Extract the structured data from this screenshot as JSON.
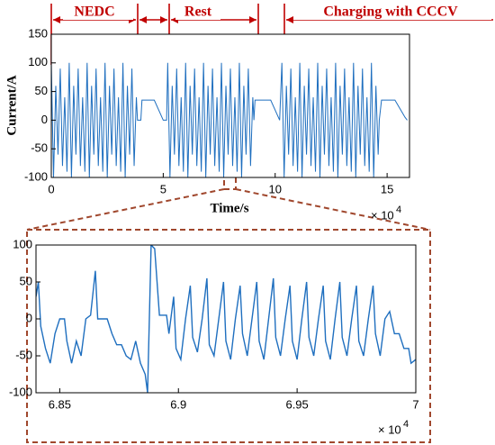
{
  "chart_data": [
    {
      "type": "line",
      "y_label": "Current/A",
      "x_label": "Time/s",
      "x_multiplier": "× 10",
      "x_exponent": "4",
      "annotations": [
        "NEDC",
        "Rest",
        "Charging with CCCV"
      ],
      "xlim": [
        0,
        16
      ],
      "xticks": [
        0,
        5,
        10,
        15
      ],
      "ylim": [
        -100,
        150
      ],
      "yticks": [
        -100,
        -50,
        0,
        50,
        100,
        150
      ],
      "color": "#1f6fbf",
      "x": [
        0,
        0.1,
        0.2,
        0.3,
        0.4,
        0.5,
        0.6,
        0.7,
        0.8,
        0.9,
        1.0,
        1.1,
        1.2,
        1.3,
        1.4,
        1.5,
        1.6,
        1.7,
        1.8,
        1.9,
        2.0,
        2.1,
        2.2,
        2.3,
        2.4,
        2.5,
        2.6,
        2.7,
        2.8,
        2.9,
        3.0,
        3.1,
        3.2,
        3.3,
        3.4,
        3.5,
        3.6,
        3.7,
        3.8,
        3.85,
        4.0,
        4.05,
        4.6,
        5.0,
        5.15,
        5.2,
        5.3,
        5.4,
        5.5,
        5.6,
        5.7,
        5.8,
        5.9,
        6.0,
        6.1,
        6.2,
        6.3,
        6.4,
        6.5,
        6.6,
        6.7,
        6.8,
        6.9,
        7.0,
        7.1,
        7.2,
        7.3,
        7.4,
        7.5,
        7.6,
        7.7,
        7.8,
        7.9,
        8.0,
        8.1,
        8.2,
        8.3,
        8.4,
        8.5,
        8.6,
        8.7,
        8.8,
        8.9,
        9.0,
        9.05,
        9.1,
        9.8,
        10.2,
        10.3,
        10.4,
        10.5,
        10.6,
        10.7,
        10.8,
        10.9,
        11.0,
        11.1,
        11.2,
        11.3,
        11.4,
        11.5,
        11.6,
        11.7,
        11.8,
        11.9,
        12.0,
        12.1,
        12.2,
        12.3,
        12.4,
        12.5,
        12.6,
        12.7,
        12.8,
        12.9,
        13.0,
        13.1,
        13.2,
        13.3,
        13.4,
        13.5,
        13.6,
        13.7,
        13.8,
        13.9,
        14.0,
        14.1,
        14.2,
        14.3,
        14.4,
        14.5,
        14.6,
        14.65,
        14.75,
        15.35,
        15.8,
        15.9
      ],
      "values": [
        100,
        -100,
        60,
        -60,
        90,
        -80,
        40,
        -90,
        100,
        -100,
        60,
        -60,
        90,
        -80,
        40,
        -90,
        100,
        -100,
        60,
        -60,
        90,
        -80,
        40,
        -90,
        100,
        -100,
        60,
        -60,
        90,
        -80,
        40,
        -90,
        100,
        -100,
        60,
        -60,
        90,
        -80,
        40,
        0,
        0,
        35,
        35,
        0,
        0,
        100,
        -100,
        60,
        -60,
        90,
        -80,
        40,
        -90,
        100,
        -100,
        60,
        -60,
        90,
        -80,
        40,
        -90,
        100,
        -100,
        60,
        -60,
        90,
        -80,
        40,
        -90,
        100,
        -100,
        60,
        -60,
        90,
        -80,
        40,
        -90,
        100,
        -100,
        60,
        -60,
        90,
        -80,
        40,
        0,
        35,
        35,
        0,
        100,
        -100,
        60,
        -60,
        90,
        -80,
        40,
        -90,
        100,
        -100,
        60,
        -60,
        90,
        -80,
        40,
        -90,
        100,
        -100,
        60,
        -60,
        90,
        -80,
        40,
        -90,
        100,
        -100,
        60,
        -60,
        90,
        -80,
        40,
        -90,
        100,
        -100,
        60,
        -60,
        90,
        -80,
        40,
        -90,
        100,
        -100,
        60,
        -60,
        0,
        35,
        35,
        5,
        0
      ]
    },
    {
      "type": "line",
      "x_multiplier": "× 10",
      "x_exponent": "4",
      "xlim": [
        6.84,
        7.0
      ],
      "xticks": [
        6.85,
        6.9,
        6.95,
        7
      ],
      "ylim": [
        -100,
        100
      ],
      "yticks": [
        -100,
        -50,
        0,
        50,
        100
      ],
      "color": "#1f6fbf",
      "x": [
        6.84,
        6.841,
        6.842,
        6.844,
        6.846,
        6.848,
        6.85,
        6.852,
        6.853,
        6.855,
        6.857,
        6.859,
        6.861,
        6.863,
        6.865,
        6.866,
        6.87,
        6.872,
        6.874,
        6.876,
        6.878,
        6.88,
        6.882,
        6.884,
        6.886,
        6.887,
        6.8885,
        6.89,
        6.891,
        6.892,
        6.895,
        6.896,
        6.898,
        6.899,
        6.901,
        6.903,
        6.905,
        6.906,
        6.908,
        6.91,
        6.912,
        6.913,
        6.915,
        6.917,
        6.919,
        6.92,
        6.922,
        6.924,
        6.926,
        6.927,
        6.929,
        6.931,
        6.933,
        6.934,
        6.936,
        6.938,
        6.94,
        6.941,
        6.943,
        6.945,
        6.947,
        6.948,
        6.95,
        6.952,
        6.954,
        6.955,
        6.957,
        6.959,
        6.961,
        6.962,
        6.964,
        6.966,
        6.968,
        6.969,
        6.971,
        6.973,
        6.975,
        6.976,
        6.978,
        6.98,
        6.982,
        6.983,
        6.985,
        6.987,
        6.989,
        6.991,
        6.993,
        6.995,
        6.997,
        6.998,
        7.0
      ],
      "values": [
        30,
        50,
        -10,
        -40,
        -60,
        -20,
        0,
        0,
        -30,
        -60,
        -30,
        -50,
        0,
        5,
        65,
        0,
        0,
        -20,
        -35,
        -35,
        -50,
        -55,
        -30,
        -60,
        -75,
        -100,
        100,
        95,
        50,
        5,
        5,
        -20,
        30,
        -40,
        -55,
        0,
        45,
        -25,
        -45,
        0,
        55,
        -35,
        -50,
        0,
        50,
        -30,
        -55,
        0,
        45,
        -20,
        -50,
        0,
        50,
        -30,
        -55,
        0,
        55,
        -25,
        -50,
        0,
        45,
        -30,
        -55,
        0,
        50,
        -25,
        -50,
        0,
        45,
        -30,
        -55,
        0,
        50,
        -25,
        -50,
        0,
        45,
        -30,
        -50,
        0,
        45,
        -20,
        -50,
        0,
        10,
        -20,
        -20,
        -40,
        -40,
        -60,
        -55
      ]
    }
  ]
}
